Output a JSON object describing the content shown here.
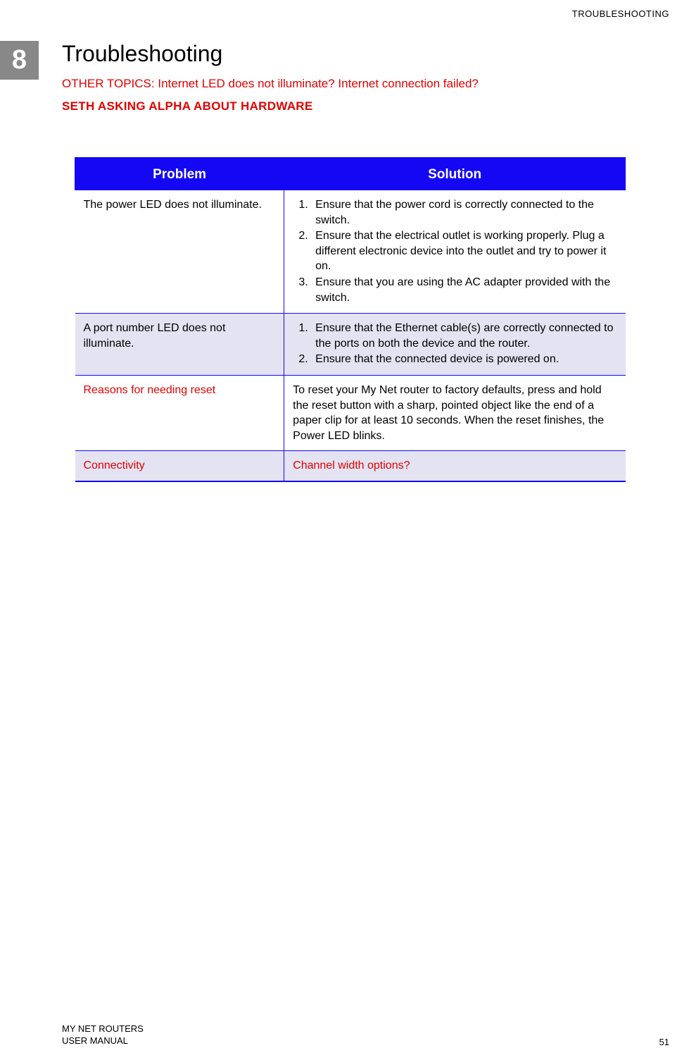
{
  "header_label": "TROUBLESHOOTING",
  "chapter_number": "8",
  "title": "Troubleshooting",
  "subtitle": "OTHER TOPICS: Internet LED does not illuminate? Internet connection failed?",
  "subheading": "SETH ASKING ALPHA ABOUT HARDWARE",
  "table": {
    "columns": [
      "Problem",
      "Solution"
    ],
    "col_widths": [
      "38%",
      "62%"
    ],
    "header_bg": "#1408f4",
    "header_color": "#ffffff",
    "border_color": "#1408f4",
    "shaded_bg": "#e3e3f2",
    "red_color": "#e00000",
    "rows": [
      {
        "shaded": false,
        "problem": "The power LED does not illuminate.",
        "problem_red": false,
        "solution_type": "list",
        "solution_items": [
          "Ensure that the power cord is correctly connected to the switch.",
          "Ensure that the electrical outlet is working properly. Plug a different electronic device into the outlet and try to power it on.",
          "Ensure that you are using the AC adapter provided with the switch."
        ],
        "solution_red": false
      },
      {
        "shaded": true,
        "problem": "A port number LED does not illuminate.",
        "problem_red": false,
        "solution_type": "list",
        "solution_items": [
          "Ensure that the Ethernet cable(s) are correctly connected to the ports on both the device and the router.",
          "Ensure that the connected device is powered on."
        ],
        "solution_red": false
      },
      {
        "shaded": false,
        "problem": "Reasons for needing reset",
        "problem_red": true,
        "solution_type": "text",
        "solution_text": "To reset your My Net router to factory defaults, press and hold the reset button with a sharp, pointed object like the end of a paper clip for at least 10 seconds. When the reset finishes, the Power LED blinks.",
        "solution_red": false
      },
      {
        "shaded": true,
        "problem": "Connectivity",
        "problem_red": true,
        "solution_type": "text",
        "solution_text": "Channel width options?",
        "solution_red": true
      }
    ]
  },
  "footer": {
    "line1": "MY NET ROUTERS",
    "line2": "USER MANUAL",
    "page_number": "51"
  }
}
